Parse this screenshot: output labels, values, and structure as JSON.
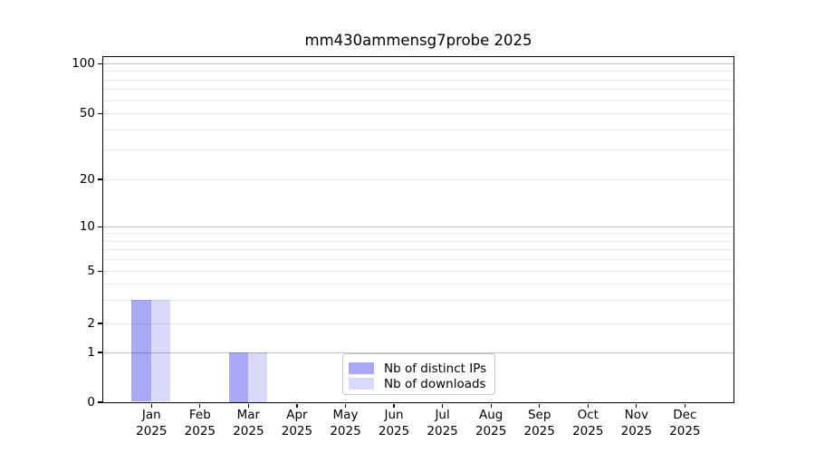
{
  "figure": {
    "background": "#ffffff"
  },
  "chart_data": {
    "type": "bar",
    "title": "mm430ammensg7probe 2025",
    "categories": [
      "Jan 2025",
      "Feb 2025",
      "Mar 2025",
      "Apr 2025",
      "May 2025",
      "Jun 2025",
      "Jul 2025",
      "Aug 2025",
      "Sep 2025",
      "Oct 2025",
      "Nov 2025",
      "Dec 2025"
    ],
    "series": [
      {
        "name": "Nb of distinct IPs",
        "color": "#a9a9f7",
        "values": [
          3,
          0,
          1,
          0,
          0,
          0,
          0,
          0,
          0,
          0,
          0,
          0
        ]
      },
      {
        "name": "Nb of downloads",
        "color": "#d9d9fa",
        "values": [
          3,
          0,
          1,
          0,
          0,
          0,
          0,
          0,
          0,
          0,
          0,
          0
        ]
      }
    ],
    "xlabel": "",
    "ylabel": "",
    "grid": "horizontal",
    "y_axis": {
      "scale": "log-like with 1-2-5 ticks, linear segment from 0 to 1",
      "major_ticks": [
        0,
        1,
        2,
        5,
        10,
        20,
        50,
        100
      ],
      "minor_gridlines": [
        3,
        4,
        6,
        7,
        8,
        9,
        30,
        40,
        60,
        70,
        80,
        90
      ],
      "emphasized_gridlines": [
        1,
        10,
        100
      ],
      "ylim": [
        0,
        110
      ]
    },
    "legend": {
      "position": "lower-center-inside",
      "entries": [
        "Nb of distinct IPs",
        "Nb of downloads"
      ]
    }
  }
}
